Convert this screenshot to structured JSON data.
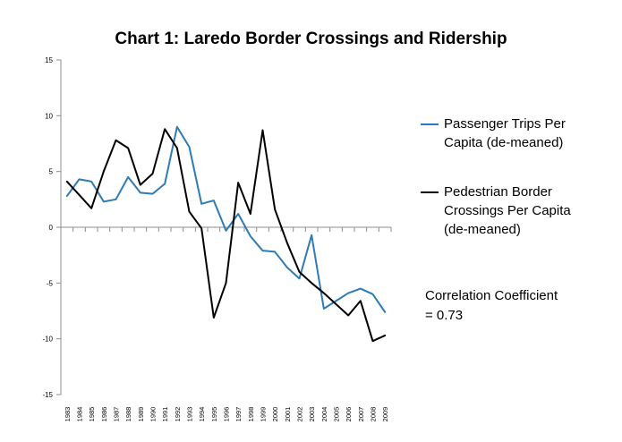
{
  "chart_data": {
    "type": "line",
    "title": "Chart 1: Laredo Border Crossings and Ridership",
    "xlabel": "",
    "ylabel": "",
    "ylim": [
      -15,
      15
    ],
    "yticks": [
      15,
      10,
      5,
      0,
      -5,
      -10,
      -15
    ],
    "grid": false,
    "legend_position": "right",
    "x": [
      "1983",
      "1984",
      "1985",
      "1986",
      "1987",
      "1988",
      "1989",
      "1990",
      "1991",
      "1992",
      "1993",
      "1994",
      "1995",
      "1996",
      "1997",
      "1998",
      "1999",
      "2000",
      "2001",
      "2002",
      "2003",
      "2004",
      "2005",
      "2006",
      "2007",
      "2008",
      "2009"
    ],
    "series": [
      {
        "name": "Passenger Trips Per Capita (de-meaned)",
        "color": "#2e7bb5",
        "values": [
          2.8,
          4.3,
          4.1,
          2.3,
          2.5,
          4.5,
          3.1,
          3.0,
          3.9,
          9.0,
          7.2,
          2.1,
          2.4,
          -0.3,
          1.2,
          -0.8,
          -2.1,
          -2.2,
          -3.6,
          -4.6,
          -0.7,
          -7.3,
          -6.6,
          -5.9,
          -5.5,
          -6.0,
          -7.6
        ]
      },
      {
        "name": "Pedestrian Border Crossings Per Capita (de-meaned)",
        "color": "#000000",
        "values": [
          4.1,
          2.9,
          1.7,
          5.0,
          7.8,
          7.1,
          3.8,
          4.8,
          8.8,
          7.1,
          1.4,
          -0.1,
          -8.1,
          -5.0,
          4.0,
          1.2,
          8.7,
          1.6,
          -1.4,
          -4.0,
          -5.0,
          -5.9,
          -6.9,
          -7.9,
          -6.6,
          -10.2,
          -9.7
        ]
      }
    ],
    "annotation": [
      "Correlation Coefficient",
      "= 0.73"
    ]
  }
}
